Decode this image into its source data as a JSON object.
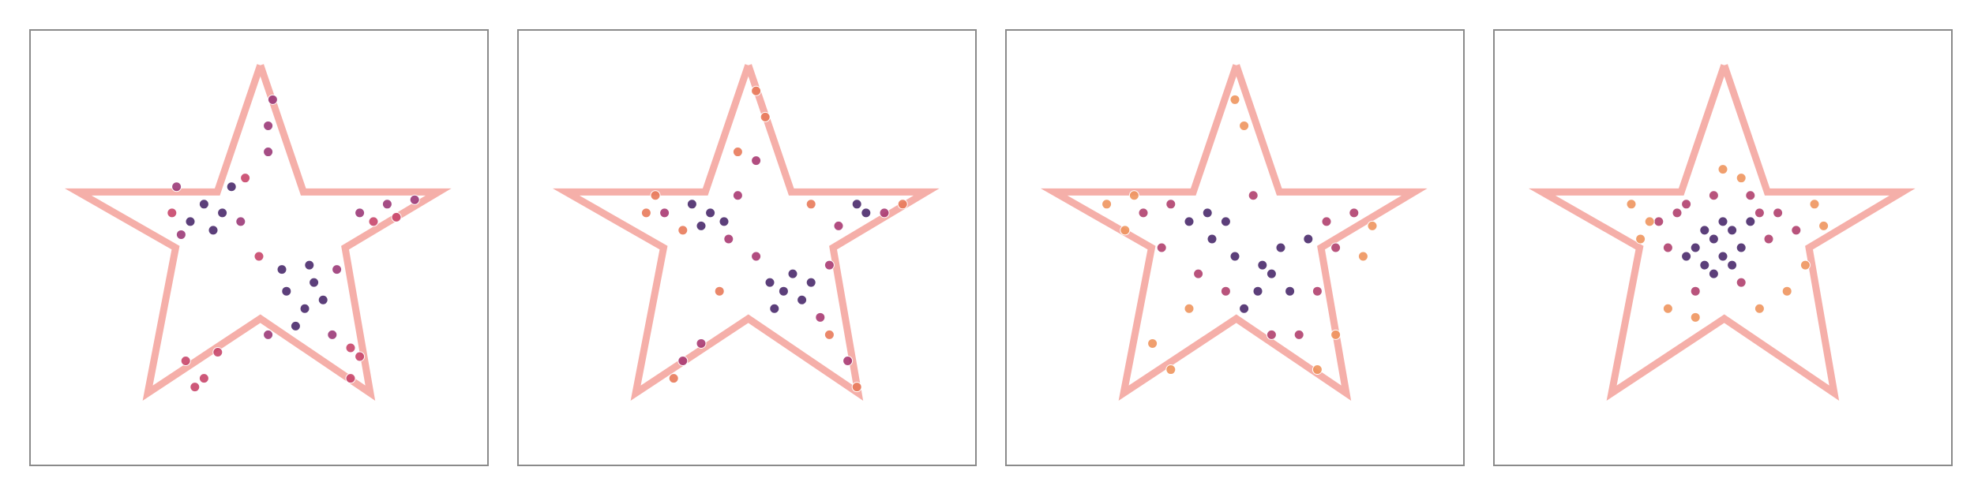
{
  "chart_data": [
    {
      "type": "scatter",
      "xlim": [
        0,
        100
      ],
      "ylim": [
        0,
        100
      ],
      "outline": {
        "color": "#f4a6a0",
        "x": [
          50.3,
          59.7,
          89.2,
          68.8,
          74.3,
          50.3,
          25.7,
          31.8,
          10.5,
          40.9,
          50.3
        ],
        "values": [
          91.9,
          62.8,
          62.8,
          50,
          16.6,
          33.7,
          16.6,
          50,
          62.8,
          62.8,
          91.9
        ]
      },
      "series": [
        {
          "color": "#4a2a6b",
          "x": [
            38,
            42,
            35,
            44,
            40,
            56,
            60,
            62,
            58,
            64,
            55,
            61
          ],
          "values": [
            60,
            58,
            56,
            64,
            54,
            40,
            36,
            42,
            32,
            38,
            45,
            46
          ]
        },
        {
          "color": "#9b3a78",
          "x": [
            32,
            46,
            33,
            52,
            66,
            67,
            72,
            78,
            84,
            52,
            53,
            52
          ],
          "values": [
            64,
            56,
            53,
            30,
            30,
            45,
            58,
            60,
            61,
            78,
            84,
            72
          ]
        },
        {
          "color": "#c8466a",
          "x": [
            34,
            38,
            41,
            70,
            72,
            47,
            50,
            31,
            80,
            75,
            36,
            70
          ],
          "values": [
            24,
            20,
            26,
            20,
            25,
            66,
            48,
            58,
            57,
            56,
            18,
            27
          ]
        }
      ]
    },
    {
      "type": "scatter",
      "xlim": [
        0,
        100
      ],
      "ylim": [
        0,
        100
      ],
      "outline": {
        "color": "#f4a6a0",
        "x": [
          50.3,
          59.7,
          89.2,
          68.8,
          74.3,
          50.3,
          25.7,
          31.8,
          10.5,
          40.9,
          50.3
        ],
        "values": [
          91.9,
          62.8,
          62.8,
          50,
          16.6,
          33.7,
          16.6,
          50,
          62.8,
          62.8,
          91.9
        ]
      },
      "series": [
        {
          "color": "#4a2a6b",
          "x": [
            42,
            38,
            45,
            58,
            62,
            60,
            56,
            76,
            74,
            40,
            64,
            55
          ],
          "values": [
            58,
            60,
            56,
            40,
            38,
            44,
            36,
            58,
            60,
            55,
            42,
            42
          ]
        },
        {
          "color": "#a83a72",
          "x": [
            32,
            48,
            52,
            66,
            68,
            80,
            70,
            36,
            40,
            72,
            52,
            46
          ],
          "values": [
            58,
            62,
            48,
            34,
            46,
            58,
            55,
            24,
            28,
            24,
            70,
            52
          ]
        },
        {
          "color": "#e87a5a",
          "x": [
            30,
            28,
            54,
            52,
            48,
            34,
            74,
            84,
            64,
            44,
            68,
            36
          ],
          "values": [
            62,
            58,
            80,
            86,
            72,
            20,
            18,
            60,
            60,
            40,
            30,
            54
          ]
        }
      ]
    },
    {
      "type": "scatter",
      "xlim": [
        0,
        100
      ],
      "ylim": [
        0,
        100
      ],
      "outline": {
        "color": "#f4a6a0",
        "x": [
          50.3,
          59.7,
          89.2,
          68.8,
          74.3,
          50.3,
          25.7,
          31.8,
          10.5,
          40.9,
          50.3
        ],
        "values": [
          91.9,
          62.8,
          62.8,
          50,
          16.6,
          33.7,
          16.6,
          50,
          62.8,
          62.8,
          91.9
        ]
      },
      "series": [
        {
          "color": "#4a2a6b",
          "x": [
            44,
            55,
            58,
            50,
            62,
            40,
            66,
            52,
            48,
            60,
            45,
            56
          ],
          "values": [
            58,
            40,
            44,
            48,
            40,
            56,
            52,
            36,
            56,
            50,
            52,
            46
          ]
        },
        {
          "color": "#b0406e",
          "x": [
            30,
            36,
            70,
            76,
            64,
            48,
            42,
            54,
            68,
            58,
            34,
            72
          ],
          "values": [
            58,
            60,
            56,
            58,
            30,
            40,
            44,
            62,
            40,
            30,
            50,
            50
          ]
        },
        {
          "color": "#ee955e",
          "x": [
            22,
            26,
            52,
            50,
            80,
            32,
            36,
            68,
            72,
            40,
            78,
            28
          ],
          "values": [
            60,
            54,
            78,
            84,
            55,
            28,
            22,
            22,
            30,
            36,
            48,
            62
          ]
        }
      ]
    },
    {
      "type": "scatter",
      "xlim": [
        0,
        100
      ],
      "ylim": [
        0,
        100
      ],
      "outline": {
        "color": "#f4a6a0",
        "x": [
          50.3,
          59.7,
          89.2,
          68.8,
          74.3,
          50.3,
          25.7,
          31.8,
          10.5,
          40.9,
          50.3
        ],
        "values": [
          91.9,
          62.8,
          62.8,
          50,
          16.6,
          33.7,
          16.6,
          50,
          62.8,
          62.8,
          91.9
        ]
      },
      "series": [
        {
          "color": "#4a2a6b",
          "x": [
            48,
            50,
            46,
            52,
            44,
            54,
            50,
            48,
            56,
            46,
            52,
            42
          ],
          "values": [
            52,
            48,
            46,
            54,
            50,
            50,
            56,
            44,
            56,
            54,
            46,
            48
          ]
        },
        {
          "color": "#b0406e",
          "x": [
            40,
            58,
            60,
            36,
            54,
            44,
            62,
            38,
            56,
            48,
            66,
            42
          ],
          "values": [
            58,
            58,
            52,
            56,
            42,
            40,
            58,
            50,
            62,
            62,
            54,
            60
          ]
        },
        {
          "color": "#ee955e",
          "x": [
            30,
            34,
            70,
            72,
            38,
            44,
            58,
            64,
            50,
            54,
            32,
            68
          ],
          "values": [
            60,
            56,
            60,
            55,
            36,
            34,
            36,
            40,
            68,
            66,
            52,
            46
          ]
        }
      ]
    }
  ]
}
